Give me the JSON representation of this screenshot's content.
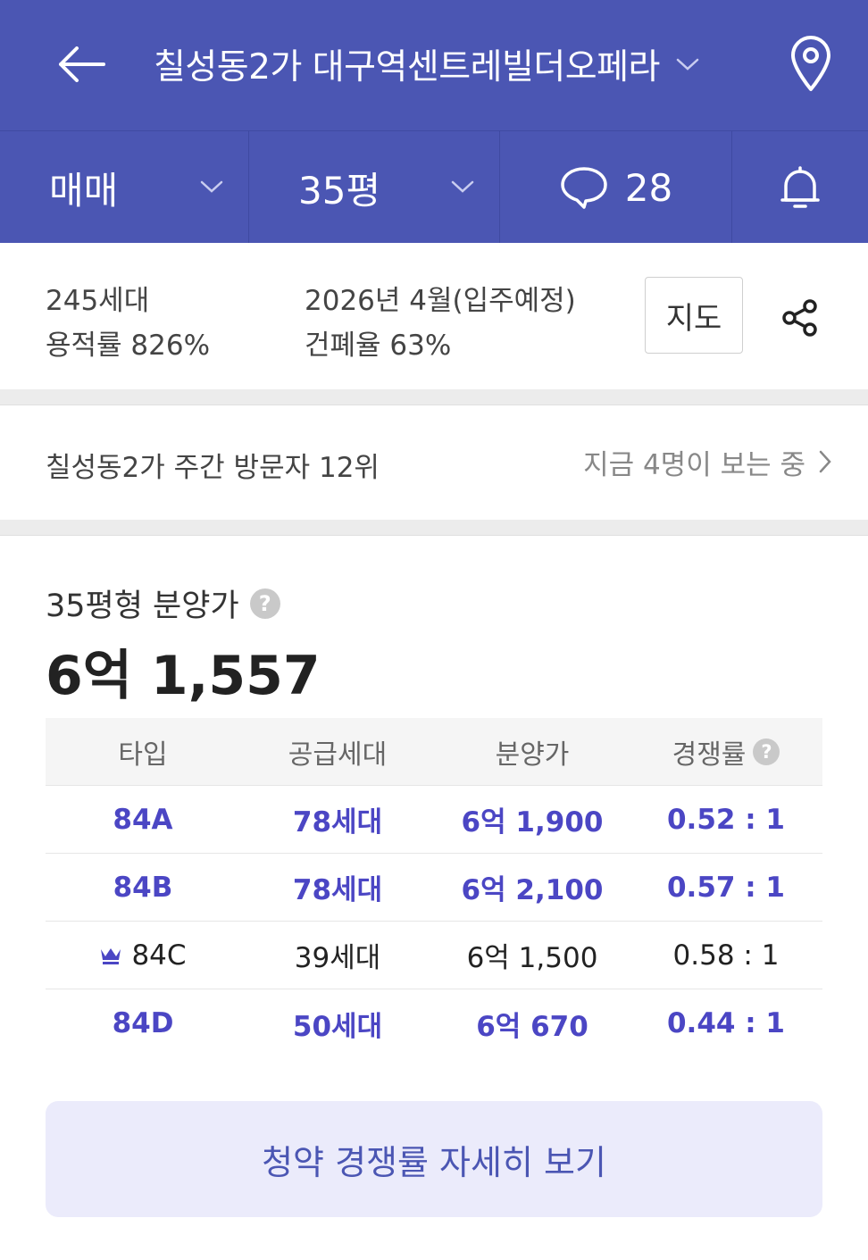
{
  "header": {
    "title": "칠성동2가 대구역센트레빌더오페라",
    "back_icon": "arrow-left-icon",
    "location_icon": "map-pin-icon"
  },
  "filters": {
    "deal_type": "매매",
    "size": "35평",
    "comment_count": "28"
  },
  "summary": {
    "households": "245세대",
    "floor_area_ratio": "용적률 826%",
    "move_in": "2026년 4월(입주예정)",
    "building_coverage": "건폐율 63%",
    "map_button": "지도"
  },
  "visitors": {
    "rank_text": "칠성동2가 주간 방문자 12위",
    "viewers_text": "지금 4명이 보는 중"
  },
  "price": {
    "label": "35평형 분양가",
    "value": "6억 1,557",
    "help": "?"
  },
  "table": {
    "headers": [
      "타입",
      "공급세대",
      "분양가",
      "경쟁률"
    ],
    "help": "?",
    "rows": [
      {
        "type": "84A",
        "supply": "78세대",
        "price": "6억 1,900",
        "ratio": "0.52 : 1"
      },
      {
        "type": "84B",
        "supply": "78세대",
        "price": "6억 2,100",
        "ratio": "0.57 : 1"
      },
      {
        "type": "84C",
        "supply": "39세대",
        "price": "6억 1,500",
        "ratio": "0.58 : 1"
      },
      {
        "type": "84D",
        "supply": "50세대",
        "price": "6억 670",
        "ratio": "0.44 : 1"
      }
    ]
  },
  "detail_button": "청약 경쟁률 자세히 보기",
  "colors": {
    "brand": "#4b56b3",
    "highlight_text": "#4b46c4",
    "button_bg": "#ebebfb"
  }
}
